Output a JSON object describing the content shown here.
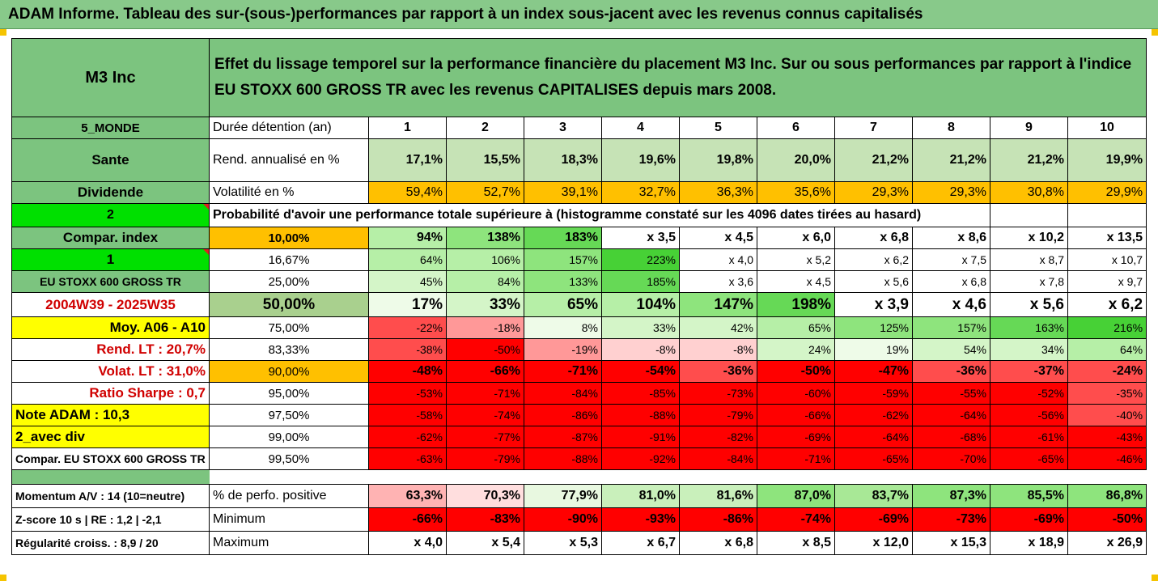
{
  "title": "ADAM Informe. Tableau des sur-(sous-)performances par rapport à un index sous-jacent avec les revenus connus capitalisés",
  "header": {
    "company": "M3 Inc",
    "description": "Effet du lissage temporel sur la performance financière du placement M3 Inc. Sur ou sous performances par rapport à l'indice EU STOXX 600 GROSS TR avec les revenus CAPITALISES depuis mars 2008."
  },
  "duration_row": {
    "side": "5_MONDE",
    "label": "Durée détention (an)",
    "years": [
      "1",
      "2",
      "3",
      "4",
      "5",
      "6",
      "7",
      "8",
      "9",
      "10"
    ]
  },
  "return_row": {
    "side": "Sante",
    "label": "Rend. annualisé en %",
    "values": [
      "17,1%",
      "15,5%",
      "18,3%",
      "19,6%",
      "19,8%",
      "20,0%",
      "21,2%",
      "21,2%",
      "21,2%",
      "19,9%"
    ]
  },
  "volatility_row": {
    "side": "Dividende",
    "label": "Volatilité en %",
    "values": [
      "59,4%",
      "52,7%",
      "39,1%",
      "32,7%",
      "36,3%",
      "35,6%",
      "29,3%",
      "29,3%",
      "30,8%",
      "29,9%"
    ]
  },
  "prob_row": {
    "side": "2",
    "label": "Probabilité d'avoir une performance totale supérieure à (histogramme constaté sur les 4096 dates tirées au hasard)"
  },
  "prob_rows": [
    {
      "side": "Compar. index",
      "threshold": "10,00%",
      "values": [
        "94%",
        "138%",
        "183%",
        "x 3,5",
        "x 4,5",
        "x 6,0",
        "x 6,8",
        "x 8,6",
        "x 10,2",
        "x 13,5"
      ]
    },
    {
      "side": "1",
      "threshold": "16,67%",
      "values": [
        "64%",
        "106%",
        "157%",
        "223%",
        "x 4,0",
        "x 5,2",
        "x 6,2",
        "x 7,5",
        "x 8,7",
        "x 10,7"
      ]
    },
    {
      "side": "EU STOXX 600 GROSS TR",
      "threshold": "25,00%",
      "values": [
        "45%",
        "84%",
        "133%",
        "185%",
        "x 3,6",
        "x 4,5",
        "x 5,6",
        "x 6,8",
        "x 7,8",
        "x 9,7"
      ]
    },
    {
      "side": "2004W39 - 2025W35",
      "threshold": "50,00%",
      "values": [
        "17%",
        "33%",
        "65%",
        "104%",
        "147%",
        "198%",
        "x 3,9",
        "x 4,6",
        "x 5,6",
        "x 6,2"
      ]
    },
    {
      "side": "Moy. A06 - A10",
      "threshold": "75,00%",
      "values": [
        "-22%",
        "-18%",
        "8%",
        "33%",
        "42%",
        "65%",
        "125%",
        "157%",
        "163%",
        "216%"
      ]
    },
    {
      "side": "Rend. LT :   20,7%",
      "threshold": "83,33%",
      "values": [
        "-38%",
        "-50%",
        "-19%",
        "-8%",
        "-8%",
        "24%",
        "19%",
        "54%",
        "34%",
        "64%"
      ]
    },
    {
      "side": "Volat. LT :   31,0%",
      "threshold": "90,00%",
      "values": [
        "-48%",
        "-66%",
        "-71%",
        "-54%",
        "-36%",
        "-50%",
        "-47%",
        "-36%",
        "-37%",
        "-24%"
      ]
    },
    {
      "side": "Ratio Sharpe :    0,7",
      "threshold": "95,00%",
      "values": [
        "-53%",
        "-71%",
        "-84%",
        "-85%",
        "-73%",
        "-60%",
        "-59%",
        "-55%",
        "-52%",
        "-35%"
      ]
    },
    {
      "side": "Note ADAM : 10,3",
      "threshold": "97,50%",
      "values": [
        "-58%",
        "-74%",
        "-86%",
        "-88%",
        "-79%",
        "-66%",
        "-62%",
        "-64%",
        "-56%",
        "-40%"
      ]
    },
    {
      "side": "2_avec div",
      "threshold": "99,00%",
      "values": [
        "-62%",
        "-77%",
        "-87%",
        "-91%",
        "-82%",
        "-69%",
        "-64%",
        "-68%",
        "-61%",
        "-43%"
      ]
    },
    {
      "side": "Compar. EU STOXX 600 GROSS TR",
      "threshold": "99,50%",
      "values": [
        "-63%",
        "-79%",
        "-88%",
        "-92%",
        "-84%",
        "-71%",
        "-65%",
        "-70%",
        "-65%",
        "-46%"
      ]
    }
  ],
  "stats_rows": [
    {
      "side": "Momentum A/V : 14 (10=neutre)",
      "label": "% de perfo. positive",
      "values": [
        "63,3%",
        "70,3%",
        "77,9%",
        "81,0%",
        "81,6%",
        "87,0%",
        "83,7%",
        "87,3%",
        "85,5%",
        "86,8%"
      ]
    },
    {
      "side": "Z-score 10 s  |  RE : 1,2  |  -2,1",
      "label": "Minimum",
      "values": [
        "-66%",
        "-83%",
        "-90%",
        "-93%",
        "-86%",
        "-74%",
        "-69%",
        "-73%",
        "-69%",
        "-50%"
      ]
    },
    {
      "side": "Régularité croiss. : 8,9 / 20",
      "label": "Maximum",
      "values": [
        "x 4,0",
        "x 5,4",
        "x 5,3",
        "x 6,7",
        "x 6,8",
        "x 8,5",
        "x 12,0",
        "x 15,3",
        "x 18,9",
        "x 26,9"
      ]
    }
  ],
  "colors": {
    "header_green": "#88c98a",
    "yellow": "#ffff00",
    "orange": "#ffc000",
    "bright_green": "#00e000",
    "red": "#ff0000",
    "dark_red_text": "#d00000"
  }
}
